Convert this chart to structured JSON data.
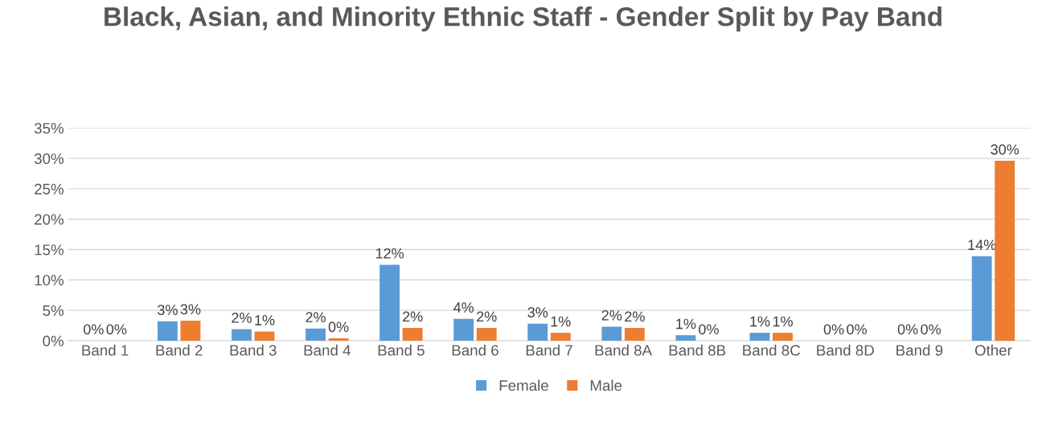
{
  "chart_data": {
    "type": "bar",
    "title": "Black, Asian, and Minority Ethnic Staff - Gender Split by Pay Band",
    "categories": [
      "Band 1",
      "Band 2",
      "Band 3",
      "Band 4",
      "Band 5",
      "Band 6",
      "Band 7",
      "Band 8A",
      "Band 8B",
      "Band 8C",
      "Band 8D",
      "Band 9",
      "Other"
    ],
    "series": [
      {
        "name": "Female",
        "color": "#5b9bd5",
        "values": [
          0,
          3.2,
          1.9,
          2.0,
          12.5,
          3.6,
          2.8,
          2.3,
          0.9,
          1.3,
          0,
          0,
          13.9
        ],
        "value_labels": [
          "0%",
          "3%",
          "2%",
          "2%",
          "12%",
          "4%",
          "3%",
          "2%",
          "1%",
          "1%",
          "0%",
          "0%",
          "14%"
        ]
      },
      {
        "name": "Male",
        "color": "#ed7d31",
        "values": [
          0,
          3.3,
          1.5,
          0.4,
          2.1,
          2.1,
          1.3,
          2.1,
          0,
          1.3,
          0,
          0,
          29.6
        ],
        "value_labels": [
          "0%",
          "3%",
          "1%",
          "0%",
          "2%",
          "2%",
          "1%",
          "2%",
          "0%",
          "1%",
          "0%",
          "0%",
          "30%"
        ]
      }
    ],
    "ylim": [
      0,
      35
    ],
    "yticks": [
      {
        "value": 0,
        "label": "0%"
      },
      {
        "value": 5,
        "label": "5%"
      },
      {
        "value": 10,
        "label": "10%"
      },
      {
        "value": 15,
        "label": "15%"
      },
      {
        "value": 20,
        "label": "20%"
      },
      {
        "value": 25,
        "label": "25%"
      },
      {
        "value": 30,
        "label": "30%"
      },
      {
        "value": 35,
        "label": "35%"
      }
    ],
    "grid": "y",
    "legend": "bottom"
  }
}
